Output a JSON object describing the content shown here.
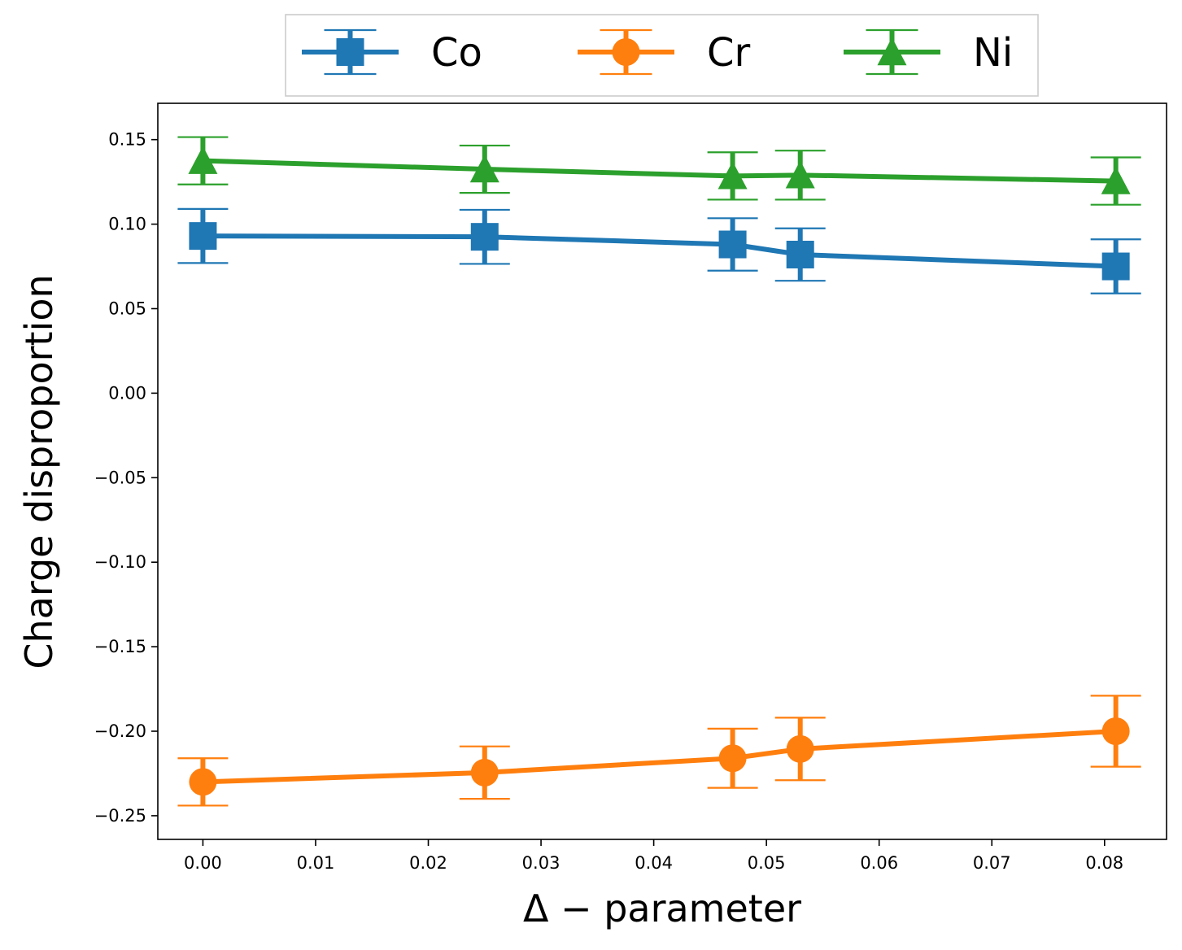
{
  "chart_data": {
    "type": "line",
    "xlabel": "Δ − parameter",
    "ylabel": "Charge disproportion",
    "xlim": [
      -0.004,
      0.0855
    ],
    "ylim": [
      -0.264,
      0.1715
    ],
    "x_ticks": [
      "0.00",
      "0.01",
      "0.02",
      "0.03",
      "0.04",
      "0.05",
      "0.06",
      "0.07",
      "0.08"
    ],
    "x_tick_values": [
      0.0,
      0.01,
      0.02,
      0.03,
      0.04,
      0.05,
      0.06,
      0.07,
      0.08
    ],
    "y_ticks": [
      "0.15",
      "0.10",
      "0.05",
      "0.00",
      "−0.05",
      "−0.10",
      "−0.15",
      "−0.20",
      "−0.25"
    ],
    "y_tick_values": [
      0.15,
      0.1,
      0.05,
      0.0,
      -0.05,
      -0.1,
      -0.15,
      -0.2,
      -0.25
    ],
    "grid": false,
    "legend_position": "top-center-outside",
    "x": [
      0.0,
      0.025,
      0.047,
      0.053,
      0.081
    ],
    "series": [
      {
        "name": "Co",
        "color": "#1f77b4",
        "marker": "square",
        "values": [
          0.093,
          0.0925,
          0.088,
          0.082,
          0.075
        ],
        "errors": [
          0.016,
          0.016,
          0.0155,
          0.0155,
          0.016
        ]
      },
      {
        "name": "Cr",
        "color": "#ff7f0e",
        "marker": "circle",
        "values": [
          -0.23,
          -0.2245,
          -0.216,
          -0.2105,
          -0.2
        ],
        "errors": [
          0.014,
          0.0155,
          0.0175,
          0.0185,
          0.021
        ]
      },
      {
        "name": "Ni",
        "color": "#2ca02c",
        "marker": "triangle",
        "values": [
          0.1375,
          0.1325,
          0.1285,
          0.129,
          0.1255
        ],
        "errors": [
          0.014,
          0.014,
          0.014,
          0.0145,
          0.014
        ]
      }
    ]
  }
}
